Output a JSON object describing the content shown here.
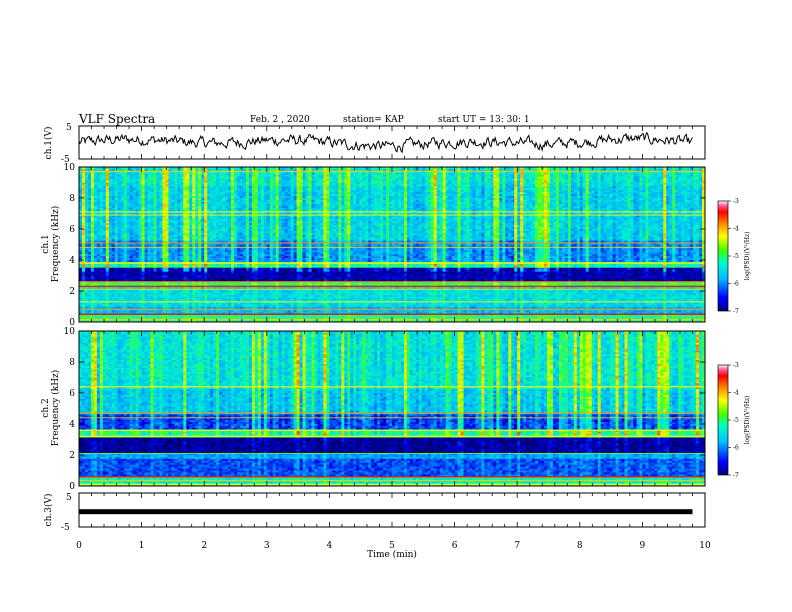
{
  "header": {
    "title": "VLF Spectra",
    "date": "Feb. 2  , 2020",
    "station": "station= KAP",
    "start": "start  UT  =   13: 30: 1"
  },
  "chart_data": [
    {
      "type": "line",
      "panel": "ch1-waveform",
      "ylabel": "ch.1(V)",
      "ylim": [
        -5,
        5
      ],
      "yticks": [
        "5",
        "-5"
      ],
      "xlim": [
        0,
        10
      ],
      "line_color": "#000000",
      "description_level": "noisy waveform around 0 V with amplitude about 1.5 V"
    },
    {
      "type": "heatmap",
      "panel": "ch1-spectrogram",
      "ylabel": "ch.1\nFrequency  (kHz)",
      "ylabel_lines": [
        "ch.1",
        "Frequency  (kHz)"
      ],
      "ylim": [
        0,
        10
      ],
      "yticks": [
        "0",
        "2",
        "4",
        "6",
        "8",
        "10"
      ],
      "xlim": [
        0,
        10
      ],
      "colorbar": {
        "label": "log(PSD)(V²/Hz)",
        "range": [
          -7,
          -3
        ],
        "ticks": [
          "-3",
          "-4",
          "-5",
          "-6",
          "-7"
        ]
      }
    },
    {
      "type": "heatmap",
      "panel": "ch2-spectrogram",
      "ylabel": "ch.2\nFrequency  (kHz)",
      "ylabel_lines": [
        "ch.2",
        "Frequency  (kHz)"
      ],
      "ylim": [
        0,
        10
      ],
      "yticks": [
        "0",
        "2",
        "4",
        "6",
        "8",
        "10"
      ],
      "xlim": [
        0,
        10
      ],
      "colorbar": {
        "label": "log(PSD)(V²/Hz)",
        "range": [
          -7,
          -3
        ],
        "ticks": [
          "-3",
          "-4",
          "-5",
          "-6",
          "-7"
        ]
      }
    },
    {
      "type": "line",
      "panel": "ch3-waveform",
      "ylabel": "ch.3(V)",
      "ylim": [
        -5,
        5
      ],
      "yticks": [
        "5",
        "-5"
      ],
      "xlim": [
        0,
        10
      ],
      "line_color": "#000000",
      "constant_value": -0.5
    }
  ],
  "xaxis": {
    "label": "Time  (min)",
    "ticks": [
      "0",
      "1",
      "2",
      "3",
      "4",
      "5",
      "6",
      "7",
      "8",
      "9",
      "10"
    ]
  },
  "colormap": [
    "#000080",
    "#0000ff",
    "#0080ff",
    "#00ffff",
    "#00ff80",
    "#80ff00",
    "#ffff00",
    "#ff8000",
    "#ff0000",
    "#ff0080",
    "#ffffff"
  ]
}
